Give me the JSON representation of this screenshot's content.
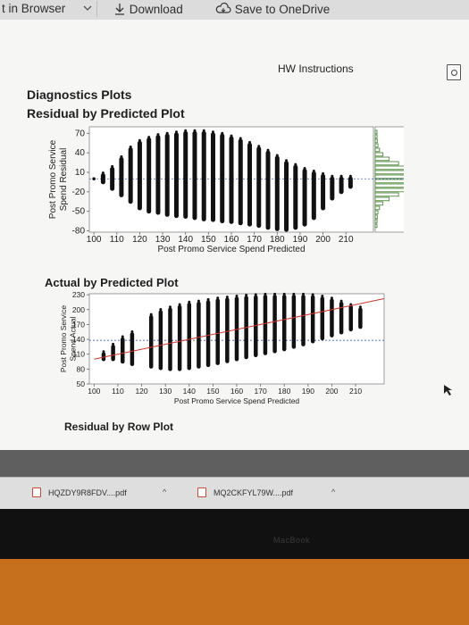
{
  "toolbar": {
    "open_in_browser": "t in Browser",
    "download": "Download",
    "save_to_onedrive": "Save to OneDrive"
  },
  "doc": {
    "hw_instructions": "HW Instructions",
    "diagnostics_title": "Diagnostics Plots",
    "residual_by_predicted_title": "Residual by Predicted Plot",
    "actual_by_predicted_title": "Actual by Predicted Plot",
    "residual_by_row_title": "Residual by Row Plot"
  },
  "downloads": [
    {
      "name": "HQZDY9R8FDV....pdf"
    },
    {
      "name": "MQ2CKFYL79W....pdf"
    }
  ],
  "laptop": {
    "brand": "MacBook"
  },
  "colors": {
    "fit_line": "#d2332b",
    "mean_line": "#3f61b8",
    "histogram": "#4f8a3e",
    "points": "#111111"
  },
  "chart_data": [
    {
      "type": "scatter",
      "title": "Residual by Predicted Plot",
      "xlabel": "Post Promo Service Spend Predicted",
      "ylabel": "Post Promo Service Spend Residual",
      "xlim": [
        98,
        222
      ],
      "ylim": [
        -82,
        80
      ],
      "x_ticks": [
        "100",
        "110",
        "120",
        "130",
        "140",
        "150",
        "160",
        "170",
        "180",
        "190",
        "200",
        "210"
      ],
      "y_ticks": [
        "70",
        "40",
        "10",
        "-20",
        "-50",
        "-80"
      ],
      "reference_line_y": 0,
      "marginal_histogram": true,
      "columns": [
        {
          "x": 100,
          "lo": 0,
          "hi": 0
        },
        {
          "x": 104,
          "lo": -5,
          "hi": 5
        },
        {
          "x": 108,
          "lo": -15,
          "hi": 15
        },
        {
          "x": 112,
          "lo": -25,
          "hi": 30
        },
        {
          "x": 116,
          "lo": -35,
          "hi": 45
        },
        {
          "x": 120,
          "lo": -45,
          "hi": 55
        },
        {
          "x": 124,
          "lo": -50,
          "hi": 60
        },
        {
          "x": 128,
          "lo": -52,
          "hi": 64
        },
        {
          "x": 132,
          "lo": -55,
          "hi": 66
        },
        {
          "x": 136,
          "lo": -57,
          "hi": 68
        },
        {
          "x": 140,
          "lo": -58,
          "hi": 70
        },
        {
          "x": 144,
          "lo": -60,
          "hi": 70
        },
        {
          "x": 148,
          "lo": -62,
          "hi": 70
        },
        {
          "x": 152,
          "lo": -63,
          "hi": 68
        },
        {
          "x": 156,
          "lo": -65,
          "hi": 66
        },
        {
          "x": 160,
          "lo": -66,
          "hi": 62
        },
        {
          "x": 164,
          "lo": -68,
          "hi": 58
        },
        {
          "x": 168,
          "lo": -70,
          "hi": 52
        },
        {
          "x": 172,
          "lo": -72,
          "hi": 46
        },
        {
          "x": 176,
          "lo": -75,
          "hi": 40
        },
        {
          "x": 180,
          "lo": -77,
          "hi": 32
        },
        {
          "x": 184,
          "lo": -78,
          "hi": 24
        },
        {
          "x": 188,
          "lo": -75,
          "hi": 18
        },
        {
          "x": 192,
          "lo": -70,
          "hi": 12
        },
        {
          "x": 196,
          "lo": -60,
          "hi": 8
        },
        {
          "x": 200,
          "lo": -45,
          "hi": 4
        },
        {
          "x": 204,
          "lo": -30,
          "hi": 0
        },
        {
          "x": 208,
          "lo": -20,
          "hi": 0
        },
        {
          "x": 212,
          "lo": -12,
          "hi": 0
        }
      ]
    },
    {
      "type": "scatter",
      "title": "Actual by Predicted Plot",
      "xlabel": "Post Promo Service Spend Predicted",
      "ylabel": "Post Promo Service Spend Actual",
      "xlim": [
        98,
        222
      ],
      "ylim": [
        50,
        232
      ],
      "x_ticks": [
        "100",
        "110",
        "120",
        "130",
        "140",
        "150",
        "160",
        "170",
        "180",
        "190",
        "200",
        "210"
      ],
      "y_ticks": [
        "230",
        "200",
        "170",
        "140",
        "110",
        "80",
        "50"
      ],
      "fit_line": {
        "x": [
          100,
          222
        ],
        "y": [
          100,
          222
        ]
      },
      "mean_line_y": 138,
      "columns": [
        {
          "x": 104,
          "lo": 100,
          "hi": 110
        },
        {
          "x": 108,
          "lo": 100,
          "hi": 125
        },
        {
          "x": 112,
          "lo": 95,
          "hi": 140
        },
        {
          "x": 116,
          "lo": 90,
          "hi": 150
        },
        {
          "x": 124,
          "lo": 85,
          "hi": 185
        },
        {
          "x": 128,
          "lo": 82,
          "hi": 195
        },
        {
          "x": 132,
          "lo": 80,
          "hi": 200
        },
        {
          "x": 136,
          "lo": 80,
          "hi": 205
        },
        {
          "x": 140,
          "lo": 82,
          "hi": 210
        },
        {
          "x": 144,
          "lo": 85,
          "hi": 212
        },
        {
          "x": 148,
          "lo": 88,
          "hi": 215
        },
        {
          "x": 152,
          "lo": 92,
          "hi": 218
        },
        {
          "x": 156,
          "lo": 96,
          "hi": 220
        },
        {
          "x": 160,
          "lo": 100,
          "hi": 222
        },
        {
          "x": 164,
          "lo": 104,
          "hi": 224
        },
        {
          "x": 168,
          "lo": 108,
          "hi": 225
        },
        {
          "x": 172,
          "lo": 112,
          "hi": 226
        },
        {
          "x": 176,
          "lo": 116,
          "hi": 226
        },
        {
          "x": 180,
          "lo": 120,
          "hi": 226
        },
        {
          "x": 184,
          "lo": 125,
          "hi": 226
        },
        {
          "x": 188,
          "lo": 130,
          "hi": 226
        },
        {
          "x": 192,
          "lo": 136,
          "hi": 225
        },
        {
          "x": 196,
          "lo": 142,
          "hi": 222
        },
        {
          "x": 200,
          "lo": 148,
          "hi": 218
        },
        {
          "x": 204,
          "lo": 154,
          "hi": 212
        },
        {
          "x": 208,
          "lo": 160,
          "hi": 205
        },
        {
          "x": 212,
          "lo": 165,
          "hi": 200
        }
      ]
    }
  ]
}
